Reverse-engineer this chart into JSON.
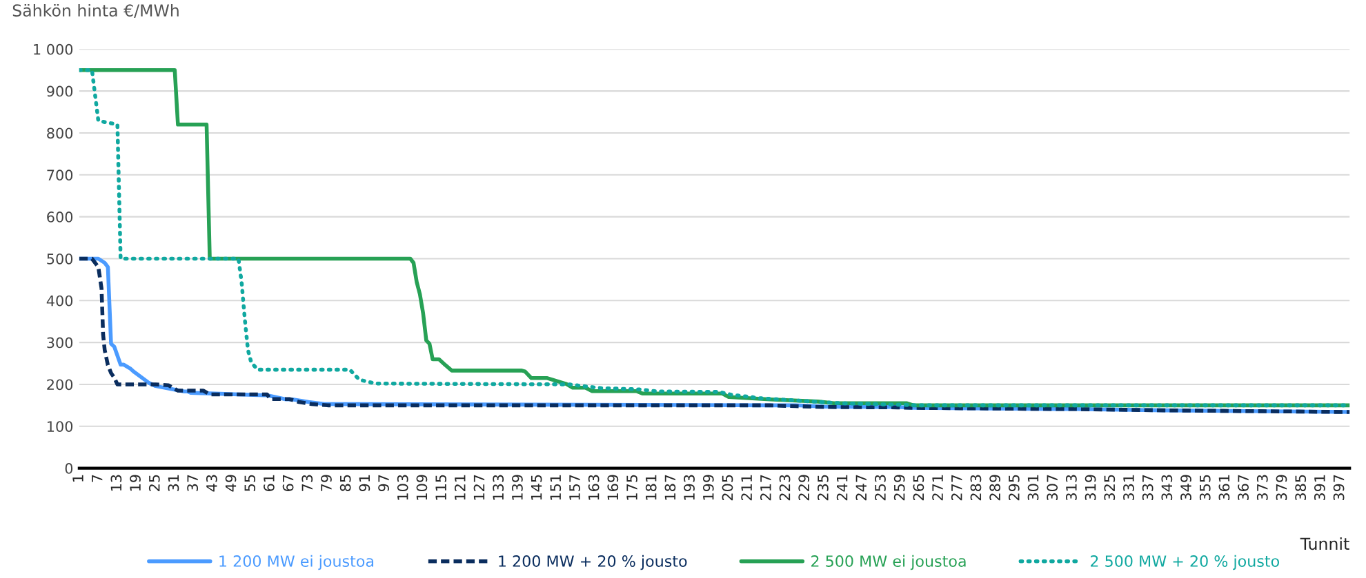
{
  "chart_data": {
    "type": "line",
    "ylabel": "Sähkön hinta €/MWh",
    "xlabel": "Tunnit",
    "xlim": [
      1,
      400
    ],
    "xticks": [
      1,
      7,
      13,
      19,
      25,
      31,
      37,
      43,
      49,
      55,
      61,
      67,
      73,
      79,
      85,
      91,
      97,
      103,
      109,
      115,
      121,
      127,
      133,
      139,
      145,
      151,
      157,
      163,
      169,
      175,
      181,
      187,
      193,
      199,
      205,
      211,
      217,
      223,
      229,
      235,
      241,
      247,
      253,
      259,
      265,
      271,
      277,
      283,
      289,
      295,
      301,
      307,
      313,
      319,
      325,
      331,
      337,
      343,
      349,
      355,
      361,
      367,
      373,
      379,
      385,
      391,
      397
    ],
    "ylim": [
      0,
      1000
    ],
    "yticks": [
      0,
      100,
      200,
      300,
      400,
      500,
      600,
      700,
      800,
      900,
      {
        "value": 1000,
        "label": "1 000"
      }
    ],
    "grid": "y",
    "legend": "bottom",
    "marker": "none",
    "series": [
      {
        "name": "1 200 MW ei joustoa",
        "color": "#4b9bff",
        "line_style": "solid",
        "x": [
          1,
          7,
          9,
          10,
          11,
          12,
          14,
          15,
          17,
          18,
          23,
          25,
          34,
          35,
          36,
          59,
          60,
          66,
          68,
          73,
          78,
          218,
          226,
          235,
          258,
          263,
          310,
          314,
          342,
          400
        ],
        "values": [
          500,
          500,
          490,
          480,
          297,
          290,
          247,
          247,
          238,
          231,
          203,
          196,
          183,
          183,
          180,
          174,
          174,
          164,
          164,
          158,
          153,
          150,
          150,
          147,
          146,
          144,
          141,
          141,
          138,
          134
        ]
      },
      {
        "name": "1 200 MW + 20 % jousto",
        "color": "#0a2d5e",
        "line_style": "dashed",
        "x": [
          1,
          5,
          7,
          8,
          8.5,
          9,
          10,
          11,
          12,
          13,
          25,
          29,
          32,
          40,
          42,
          60,
          61,
          67,
          70,
          74,
          79,
          218,
          226,
          235,
          258,
          263,
          310,
          314,
          342,
          400
        ],
        "values": [
          500,
          500,
          480,
          429,
          319,
          282,
          246,
          227,
          216,
          200,
          200,
          198,
          185,
          185,
          176,
          176,
          165,
          165,
          158,
          153,
          150,
          150,
          148,
          146,
          145,
          144,
          141,
          141,
          138,
          134
        ]
      },
      {
        "name": "2 500 MW ei joustoa",
        "color": "#27a155",
        "line_style": "solid",
        "x": [
          1,
          31,
          32,
          41,
          42,
          105,
          106,
          107,
          108,
          109,
          110,
          111,
          112,
          114,
          116,
          118,
          140,
          141,
          143,
          148,
          151,
          154,
          156,
          160,
          162,
          176,
          178,
          203,
          205,
          218,
          233,
          238,
          261,
          263,
          400
        ],
        "values": [
          950,
          950,
          820,
          820,
          500,
          500,
          490,
          444,
          415,
          370,
          305,
          297,
          260,
          260,
          246,
          233,
          233,
          231,
          215,
          215,
          208,
          201,
          192,
          192,
          184,
          184,
          178,
          178,
          170,
          164,
          159,
          155,
          155,
          150,
          150
        ]
      },
      {
        "name": "2 500 MW + 20 % jousto",
        "color": "#10a8a0",
        "line_style": "dotted",
        "x": [
          1,
          5,
          7,
          13,
          14,
          51,
          52,
          53,
          54,
          55,
          57,
          86,
          89,
          94,
          155,
          158,
          165,
          177,
          183,
          202,
          206,
          215,
          225,
          240,
          255,
          265,
          400
        ],
        "values": [
          950,
          950,
          829,
          820,
          500,
          500,
          444,
          356,
          282,
          253,
          235,
          235,
          211,
          202,
          200,
          197,
          191,
          188,
          183,
          182,
          175,
          167,
          162,
          155,
          152,
          150,
          150
        ]
      }
    ]
  }
}
